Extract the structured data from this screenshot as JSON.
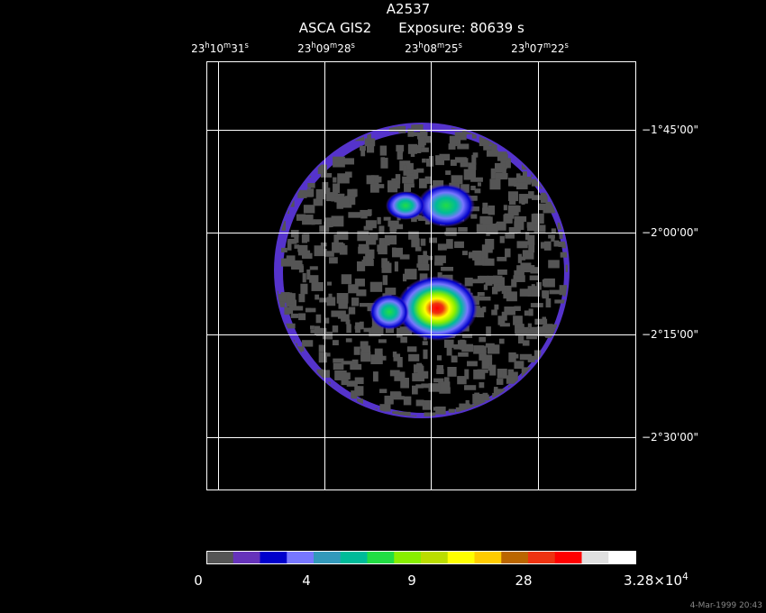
{
  "header": {
    "title": "A2537",
    "instrument": "ASCA GIS2",
    "exposure": "Exposure: 80639 s"
  },
  "ra_ticks": [
    [
      "23",
      "h",
      "10",
      "m",
      "31",
      "s"
    ],
    [
      "23",
      "h",
      "09",
      "m",
      "28",
      "s"
    ],
    [
      "23",
      "h",
      "08",
      "m",
      "25",
      "s"
    ],
    [
      "23",
      "h",
      "07",
      "m",
      "22",
      "s"
    ]
  ],
  "dec_ticks": [
    "−1°45'00\"",
    "−2°00'00\"",
    "−2°15'00\"",
    "−2°30'00\""
  ],
  "colorbar": {
    "colors": [
      "#555555",
      "#6633bb",
      "#0000cc",
      "#7777ff",
      "#3399bb",
      "#00bb99",
      "#22dd44",
      "#88ee00",
      "#bbdd00",
      "#ffff00",
      "#ffcc00",
      "#bb6600",
      "#ee3311",
      "#ff0000",
      "#e0e0e0",
      "#ffffff"
    ],
    "labels": [
      [
        "0"
      ],
      [
        "4"
      ],
      [
        "9"
      ],
      [
        "28"
      ],
      [
        "3.28×10",
        "4"
      ]
    ]
  },
  "timestamp": "4-Mar-1999 20:43"
}
